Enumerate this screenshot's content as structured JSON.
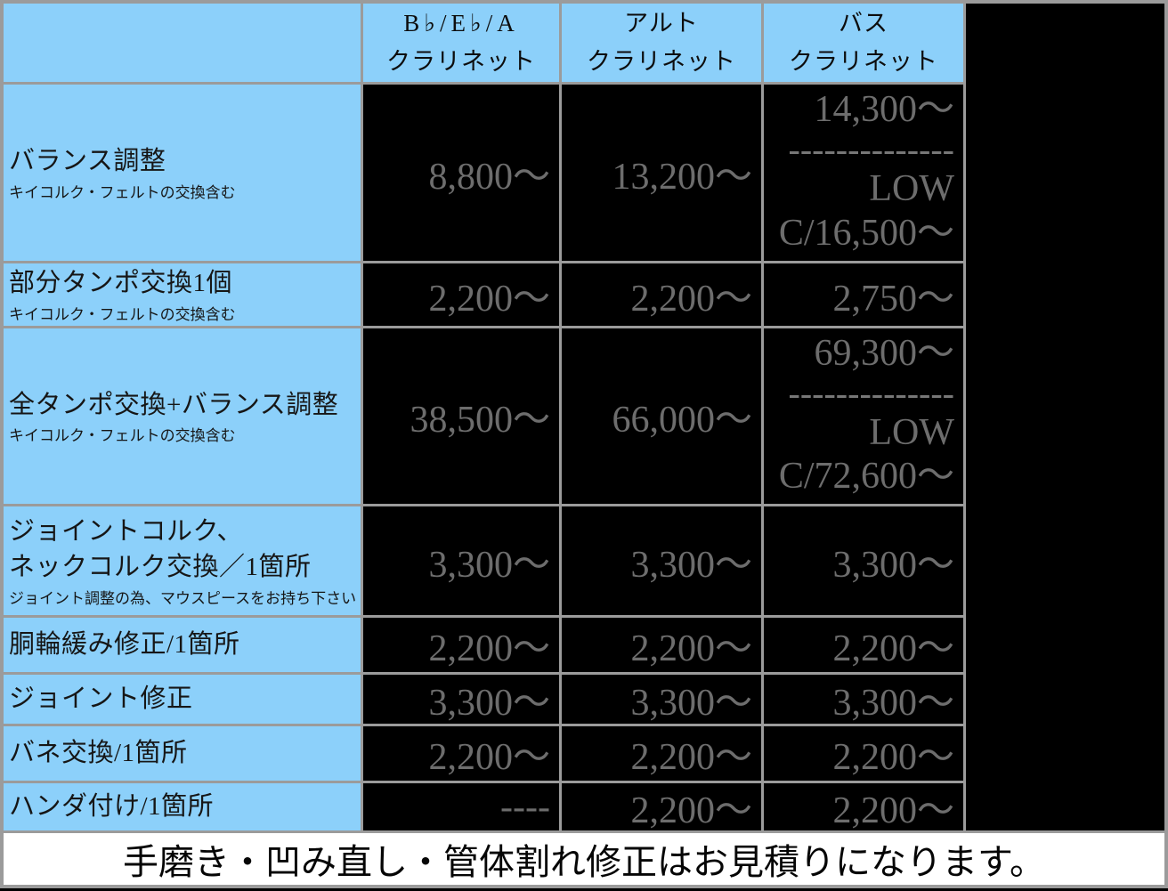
{
  "colors": {
    "blue": "#8cd0fa",
    "border": "#9b9b9b",
    "black": "#000000",
    "price": "#6d6d6d",
    "white": "#ffffff"
  },
  "header": {
    "instrument_columns": [
      {
        "line1": "B♭/E♭/A",
        "line2": "クラリネット"
      },
      {
        "line1": "アルト",
        "line2": "クラリネット"
      },
      {
        "line1": "バス",
        "line2": "クラリネット"
      }
    ]
  },
  "rows": [
    {
      "label": "バランス調整",
      "note": "キイコルク・フェルトの交換含む",
      "bb": "8,800〜",
      "alto": "13,200〜",
      "bass_line1": "14,300〜",
      "bass_divider": "--------------",
      "bass_line2": "LOW",
      "bass_line3": "C/16,500〜"
    },
    {
      "label": "部分タンポ交換1個",
      "note": "キイコルク・フェルトの交換含む",
      "bb": "2,200〜",
      "alto": "2,200〜",
      "bass": "2,750〜"
    },
    {
      "label": "全タンポ交換+バランス調整",
      "note": "キイコルク・フェルトの交換含む",
      "bb": "38,500〜",
      "alto": "66,000〜",
      "bass_line1": "69,300〜",
      "bass_divider": "--------------",
      "bass_line2": "LOW",
      "bass_line3": "C/72,600〜"
    },
    {
      "label": "ジョイントコルク、",
      "label2": "ネックコルク交換／1箇所",
      "note": "ジョイント調整の為、マウスピースをお持ち下さい",
      "bb": "3,300〜",
      "alto": "3,300〜",
      "bass": "3,300〜"
    },
    {
      "label": "胴輪緩み修正/1箇所",
      "bb": "2,200〜",
      "alto": "2,200〜",
      "bass": "2,200〜"
    },
    {
      "label": "ジョイント修正",
      "bb": "3,300〜",
      "alto": "3,300〜",
      "bass": "3,300〜"
    },
    {
      "label": "バネ交換/1箇所",
      "bb": "2,200〜",
      "alto": "2,200〜",
      "bass": "2,200〜"
    },
    {
      "label": "ハンダ付け/1箇所",
      "bb": "----",
      "alto": "2,200〜",
      "bass": "2,200〜"
    }
  ],
  "footer": {
    "note": "手磨き・凹み直し・管体割れ修正はお見積りになります。"
  }
}
